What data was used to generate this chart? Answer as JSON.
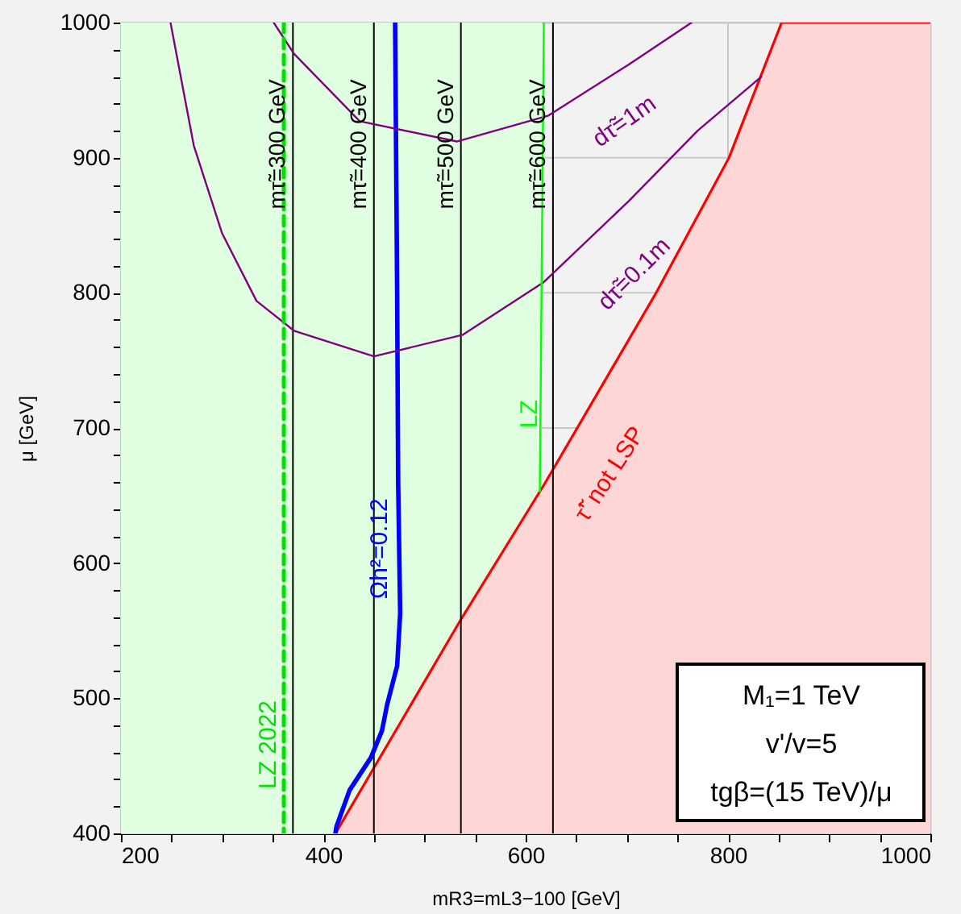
{
  "chart_data": {
    "type": "line",
    "xlabel": "mR3=mL3−100 [GeV]",
    "ylabel": "μ [GeV]",
    "xlim": [
      200,
      1000
    ],
    "ylim": [
      400,
      1000
    ],
    "xticks": [
      200,
      {
        "value": 250,
        "label": null
      },
      {
        "value": 300,
        "label": null
      },
      {
        "value": 350,
        "label": null
      },
      400,
      {
        "value": 450,
        "label": null
      },
      {
        "value": 500,
        "label": null
      },
      {
        "value": 550,
        "label": null
      },
      600,
      {
        "value": 650,
        "label": null
      },
      {
        "value": 700,
        "label": null
      },
      {
        "value": 750,
        "label": null
      },
      800,
      {
        "value": 850,
        "label": null
      },
      {
        "value": 900,
        "label": null
      },
      {
        "value": 950,
        "label": null
      },
      1000
    ],
    "yticks": [
      400,
      {
        "value": 420,
        "label": null
      },
      {
        "value": 440,
        "label": null
      },
      {
        "value": 460,
        "label": null
      },
      {
        "value": 480,
        "label": null
      },
      500,
      {
        "value": 520,
        "label": null
      },
      {
        "value": 540,
        "label": null
      },
      {
        "value": 560,
        "label": null
      },
      {
        "value": 580,
        "label": null
      },
      600,
      {
        "value": 620,
        "label": null
      },
      {
        "value": 640,
        "label": null
      },
      {
        "value": 660,
        "label": null
      },
      {
        "value": 680,
        "label": null
      },
      700,
      {
        "value": 720,
        "label": null
      },
      {
        "value": 740,
        "label": null
      },
      {
        "value": 760,
        "label": null
      },
      {
        "value": 780,
        "label": null
      },
      800,
      {
        "value": 820,
        "label": null
      },
      {
        "value": 840,
        "label": null
      },
      {
        "value": 860,
        "label": null
      },
      {
        "value": 880,
        "label": null
      },
      900,
      {
        "value": 920,
        "label": null
      },
      {
        "value": 940,
        "label": null
      },
      {
        "value": 960,
        "label": null
      },
      {
        "value": 980,
        "label": null
      },
      1000
    ],
    "grid": true,
    "bands": [
      {
        "axis": "x",
        "from": 200,
        "to": 616,
        "color": "#e0ffe0"
      }
    ],
    "series": [
      {
        "name": "Ωh²=0.12",
        "color": "#0000ff",
        "x": [
          471,
          473,
          474,
          476,
          473,
          463,
          458,
          447,
          426,
          413,
          412
        ],
        "values": [
          1000,
          800,
          659,
          563,
          524,
          495,
          476,
          456,
          432,
          405,
          400
        ]
      },
      {
        "name": "dτ̃=1m",
        "color": "#800080",
        "x": [
          351,
          371,
          436,
          532,
          622,
          702,
          764
        ],
        "values": [
          1000,
          977,
          927,
          912,
          931,
          969,
          1000
        ]
      },
      {
        "name": "dτ̃=0.1m",
        "color": "#800080",
        "x": [
          249,
          272,
          300,
          334,
          371,
          450,
          538,
          618,
          702,
          770,
          833
        ],
        "values": [
          1000,
          909,
          844,
          794,
          772,
          753,
          769,
          808,
          868,
          920,
          960
        ]
      },
      {
        "name": "τ̃' not LSP",
        "type": "area",
        "color": "#ff0000",
        "x": [
          412,
          535,
          619,
          729,
          801,
          853,
          1000
        ],
        "values": [
          400,
          557,
          659,
          800,
          900,
          1000,
          1000
        ]
      },
      {
        "name": "LZ",
        "color": "#00ff00",
        "x": [
          618,
          614
        ],
        "values": [
          1000,
          653
        ]
      },
      {
        "name": "LZ 2022",
        "color": "#00e000",
        "line_style": "dashed",
        "x": [
          361,
          361
        ],
        "values": [
          1000,
          400
        ]
      }
    ],
    "ref_lines": [
      {
        "axis": "x",
        "value": 370,
        "color": "#000000"
      },
      {
        "axis": "x",
        "value": 450,
        "color": "#000000"
      },
      {
        "axis": "x",
        "value": 536,
        "color": "#000000"
      },
      {
        "axis": "x",
        "value": 627,
        "color": "#000000"
      }
    ],
    "annotations": [
      "M₁=1 TeV",
      "v'/v=5",
      "tgβ=(15 TeV)/μ",
      {
        "text": "mτ̃=300 GeV",
        "x": 370,
        "y": 910
      },
      {
        "text": "mτ̃=400 GeV",
        "x": 450,
        "y": 910
      },
      {
        "text": "mτ̃=500 GeV",
        "x": 536,
        "y": 910
      },
      {
        "text": "mτ̃=600 GeV",
        "x": 627,
        "y": 910
      }
    ]
  }
}
